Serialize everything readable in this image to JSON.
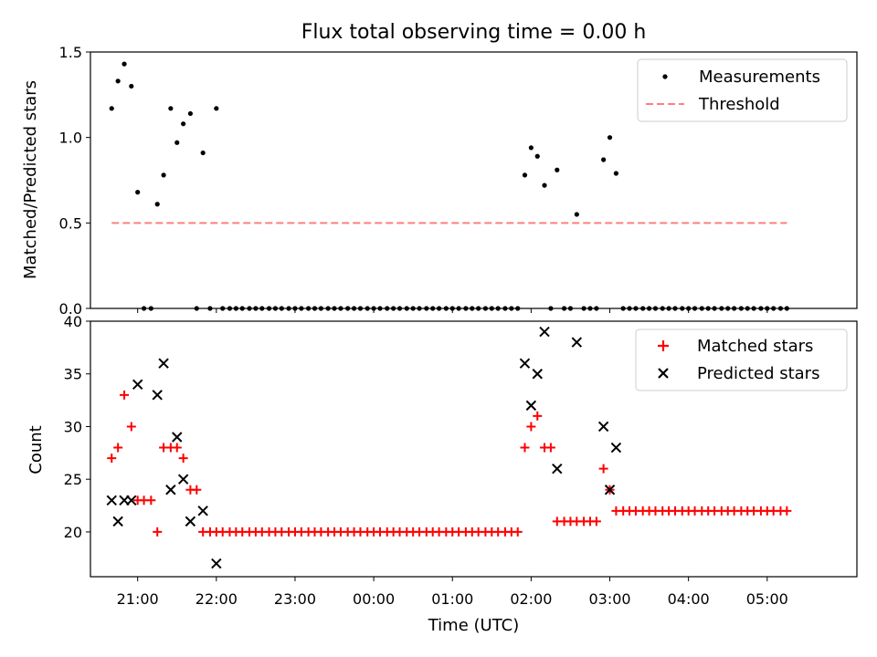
{
  "chart_data": [
    {
      "type": "scatter",
      "title": "Flux total observing time = 0.00 h",
      "xlabel": "",
      "ylabel": "Matched/Predicted stars",
      "xlim": [
        20.4,
        30.14
      ],
      "ylim": [
        0.0,
        1.5
      ],
      "yticks": [
        0.0,
        0.5,
        1.0,
        1.5
      ],
      "ytick_labels": [
        "0.0",
        "0.5",
        "1.0",
        "1.5"
      ],
      "legend": {
        "placement": "top-right",
        "entries": [
          "Measurements",
          "Threshold"
        ]
      },
      "series": [
        {
          "name": "Measurements",
          "color": "#000000",
          "marker": "dot",
          "points": [
            [
              20.67,
              1.17
            ],
            [
              20.75,
              1.33
            ],
            [
              20.83,
              1.43
            ],
            [
              20.92,
              1.3
            ],
            [
              21.0,
              0.68
            ],
            [
              21.08,
              0.0
            ],
            [
              21.17,
              0.0
            ],
            [
              21.25,
              0.61
            ],
            [
              21.33,
              0.78
            ],
            [
              21.42,
              1.17
            ],
            [
              21.5,
              0.97
            ],
            [
              21.58,
              1.08
            ],
            [
              21.67,
              1.14
            ],
            [
              21.75,
              0.0
            ],
            [
              21.83,
              0.91
            ],
            [
              21.92,
              0.0
            ],
            [
              22.0,
              1.17
            ],
            [
              22.08,
              0.0
            ],
            [
              22.17,
              0.0
            ],
            [
              22.25,
              0.0
            ],
            [
              22.33,
              0.0
            ],
            [
              22.42,
              0.0
            ],
            [
              22.5,
              0.0
            ],
            [
              22.58,
              0.0
            ],
            [
              22.67,
              0.0
            ],
            [
              22.75,
              0.0
            ],
            [
              22.83,
              0.0
            ],
            [
              22.92,
              0.0
            ],
            [
              23.0,
              0.0
            ],
            [
              23.08,
              0.0
            ],
            [
              23.17,
              0.0
            ],
            [
              23.25,
              0.0
            ],
            [
              23.33,
              0.0
            ],
            [
              23.42,
              0.0
            ],
            [
              23.5,
              0.0
            ],
            [
              23.58,
              0.0
            ],
            [
              23.67,
              0.0
            ],
            [
              23.75,
              0.0
            ],
            [
              23.83,
              0.0
            ],
            [
              23.92,
              0.0
            ],
            [
              24.0,
              0.0
            ],
            [
              24.08,
              0.0
            ],
            [
              24.17,
              0.0
            ],
            [
              24.25,
              0.0
            ],
            [
              24.33,
              0.0
            ],
            [
              24.42,
              0.0
            ],
            [
              24.5,
              0.0
            ],
            [
              24.58,
              0.0
            ],
            [
              24.67,
              0.0
            ],
            [
              24.75,
              0.0
            ],
            [
              24.83,
              0.0
            ],
            [
              24.92,
              0.0
            ],
            [
              25.0,
              0.0
            ],
            [
              25.08,
              0.0
            ],
            [
              25.17,
              0.0
            ],
            [
              25.25,
              0.0
            ],
            [
              25.33,
              0.0
            ],
            [
              25.42,
              0.0
            ],
            [
              25.5,
              0.0
            ],
            [
              25.58,
              0.0
            ],
            [
              25.67,
              0.0
            ],
            [
              25.75,
              0.0
            ],
            [
              25.83,
              0.0
            ],
            [
              25.92,
              0.78
            ],
            [
              26.0,
              0.94
            ],
            [
              26.08,
              0.89
            ],
            [
              26.17,
              0.72
            ],
            [
              26.25,
              0.0
            ],
            [
              26.33,
              0.81
            ],
            [
              26.42,
              0.0
            ],
            [
              26.5,
              0.0
            ],
            [
              26.58,
              0.55
            ],
            [
              26.67,
              0.0
            ],
            [
              26.75,
              0.0
            ],
            [
              26.83,
              0.0
            ],
            [
              26.92,
              0.87
            ],
            [
              27.0,
              1.0
            ],
            [
              27.08,
              0.79
            ],
            [
              27.17,
              0.0
            ],
            [
              27.25,
              0.0
            ],
            [
              27.33,
              0.0
            ],
            [
              27.42,
              0.0
            ],
            [
              27.5,
              0.0
            ],
            [
              27.58,
              0.0
            ],
            [
              27.67,
              0.0
            ],
            [
              27.75,
              0.0
            ],
            [
              27.83,
              0.0
            ],
            [
              27.92,
              0.0
            ],
            [
              28.0,
              0.0
            ],
            [
              28.08,
              0.0
            ],
            [
              28.17,
              0.0
            ],
            [
              28.25,
              0.0
            ],
            [
              28.33,
              0.0
            ],
            [
              28.42,
              0.0
            ],
            [
              28.5,
              0.0
            ],
            [
              28.58,
              0.0
            ],
            [
              28.67,
              0.0
            ],
            [
              28.75,
              0.0
            ],
            [
              28.83,
              0.0
            ],
            [
              28.92,
              0.0
            ],
            [
              29.0,
              0.0
            ],
            [
              29.08,
              0.0
            ],
            [
              29.17,
              0.0
            ],
            [
              29.25,
              0.0
            ]
          ]
        },
        {
          "name": "Threshold",
          "color": "#ff7f7f",
          "style": "dashed",
          "x": [
            20.67,
            29.25
          ],
          "y": [
            0.5,
            0.5
          ]
        }
      ]
    },
    {
      "type": "scatter",
      "title": "",
      "xlabel": "Time (UTC)",
      "ylabel": "Count",
      "xlim": [
        20.4,
        30.14
      ],
      "ylim": [
        15.75,
        40.0
      ],
      "yticks": [
        20,
        25,
        30,
        35,
        40
      ],
      "ytick_labels": [
        "20",
        "25",
        "30",
        "35",
        "40"
      ],
      "xticks": [
        21,
        22,
        23,
        24,
        25,
        26,
        27,
        28,
        29
      ],
      "xtick_labels": [
        "21:00",
        "22:00",
        "23:00",
        "00:00",
        "01:00",
        "02:00",
        "03:00",
        "04:00",
        "05:00"
      ],
      "legend": {
        "placement": "top-right",
        "entries": [
          "Matched stars",
          "Predicted stars"
        ]
      },
      "series": [
        {
          "name": "Matched stars",
          "color": "#ff0000",
          "marker": "plus",
          "points": [
            [
              20.67,
              27
            ],
            [
              20.75,
              28
            ],
            [
              20.83,
              33
            ],
            [
              20.92,
              30
            ],
            [
              21.0,
              23
            ],
            [
              21.08,
              23
            ],
            [
              21.17,
              23
            ],
            [
              21.25,
              20
            ],
            [
              21.33,
              28
            ],
            [
              21.42,
              28
            ],
            [
              21.5,
              28
            ],
            [
              21.58,
              27
            ],
            [
              21.67,
              24
            ],
            [
              21.75,
              24
            ],
            [
              21.83,
              20
            ],
            [
              21.92,
              20
            ],
            [
              22.0,
              20
            ],
            [
              22.08,
              20
            ],
            [
              22.17,
              20
            ],
            [
              22.25,
              20
            ],
            [
              22.33,
              20
            ],
            [
              22.42,
              20
            ],
            [
              22.5,
              20
            ],
            [
              22.58,
              20
            ],
            [
              22.67,
              20
            ],
            [
              22.75,
              20
            ],
            [
              22.83,
              20
            ],
            [
              22.92,
              20
            ],
            [
              23.0,
              20
            ],
            [
              23.08,
              20
            ],
            [
              23.17,
              20
            ],
            [
              23.25,
              20
            ],
            [
              23.33,
              20
            ],
            [
              23.42,
              20
            ],
            [
              23.5,
              20
            ],
            [
              23.58,
              20
            ],
            [
              23.67,
              20
            ],
            [
              23.75,
              20
            ],
            [
              23.83,
              20
            ],
            [
              23.92,
              20
            ],
            [
              24.0,
              20
            ],
            [
              24.08,
              20
            ],
            [
              24.17,
              20
            ],
            [
              24.25,
              20
            ],
            [
              24.33,
              20
            ],
            [
              24.42,
              20
            ],
            [
              24.5,
              20
            ],
            [
              24.58,
              20
            ],
            [
              24.67,
              20
            ],
            [
              24.75,
              20
            ],
            [
              24.83,
              20
            ],
            [
              24.92,
              20
            ],
            [
              25.0,
              20
            ],
            [
              25.08,
              20
            ],
            [
              25.17,
              20
            ],
            [
              25.25,
              20
            ],
            [
              25.33,
              20
            ],
            [
              25.42,
              20
            ],
            [
              25.5,
              20
            ],
            [
              25.58,
              20
            ],
            [
              25.67,
              20
            ],
            [
              25.75,
              20
            ],
            [
              25.83,
              20
            ],
            [
              25.92,
              28
            ],
            [
              26.0,
              30
            ],
            [
              26.08,
              31
            ],
            [
              26.17,
              28
            ],
            [
              26.25,
              28
            ],
            [
              26.33,
              21
            ],
            [
              26.42,
              21
            ],
            [
              26.5,
              21
            ],
            [
              26.58,
              21
            ],
            [
              26.67,
              21
            ],
            [
              26.75,
              21
            ],
            [
              26.83,
              21
            ],
            [
              26.92,
              26
            ],
            [
              27.0,
              24
            ],
            [
              27.08,
              22
            ],
            [
              27.17,
              22
            ],
            [
              27.25,
              22
            ],
            [
              27.33,
              22
            ],
            [
              27.42,
              22
            ],
            [
              27.5,
              22
            ],
            [
              27.58,
              22
            ],
            [
              27.67,
              22
            ],
            [
              27.75,
              22
            ],
            [
              27.83,
              22
            ],
            [
              27.92,
              22
            ],
            [
              28.0,
              22
            ],
            [
              28.08,
              22
            ],
            [
              28.17,
              22
            ],
            [
              28.25,
              22
            ],
            [
              28.33,
              22
            ],
            [
              28.42,
              22
            ],
            [
              28.5,
              22
            ],
            [
              28.58,
              22
            ],
            [
              28.67,
              22
            ],
            [
              28.75,
              22
            ],
            [
              28.83,
              22
            ],
            [
              28.92,
              22
            ],
            [
              29.0,
              22
            ],
            [
              29.08,
              22
            ],
            [
              29.17,
              22
            ],
            [
              29.25,
              22
            ]
          ]
        },
        {
          "name": "Predicted stars",
          "color": "#000000",
          "marker": "x",
          "points": [
            [
              20.67,
              23
            ],
            [
              20.75,
              21
            ],
            [
              20.83,
              23
            ],
            [
              20.92,
              23
            ],
            [
              21.0,
              34
            ],
            [
              21.25,
              33
            ],
            [
              21.33,
              36
            ],
            [
              21.42,
              24
            ],
            [
              21.5,
              29
            ],
            [
              21.58,
              25
            ],
            [
              21.67,
              21
            ],
            [
              21.83,
              22
            ],
            [
              22.0,
              17
            ],
            [
              25.92,
              36
            ],
            [
              26.0,
              32
            ],
            [
              26.08,
              35
            ],
            [
              26.17,
              39
            ],
            [
              26.33,
              26
            ],
            [
              26.58,
              38
            ],
            [
              26.92,
              30
            ],
            [
              27.0,
              24
            ],
            [
              27.08,
              28
            ]
          ]
        }
      ]
    }
  ]
}
